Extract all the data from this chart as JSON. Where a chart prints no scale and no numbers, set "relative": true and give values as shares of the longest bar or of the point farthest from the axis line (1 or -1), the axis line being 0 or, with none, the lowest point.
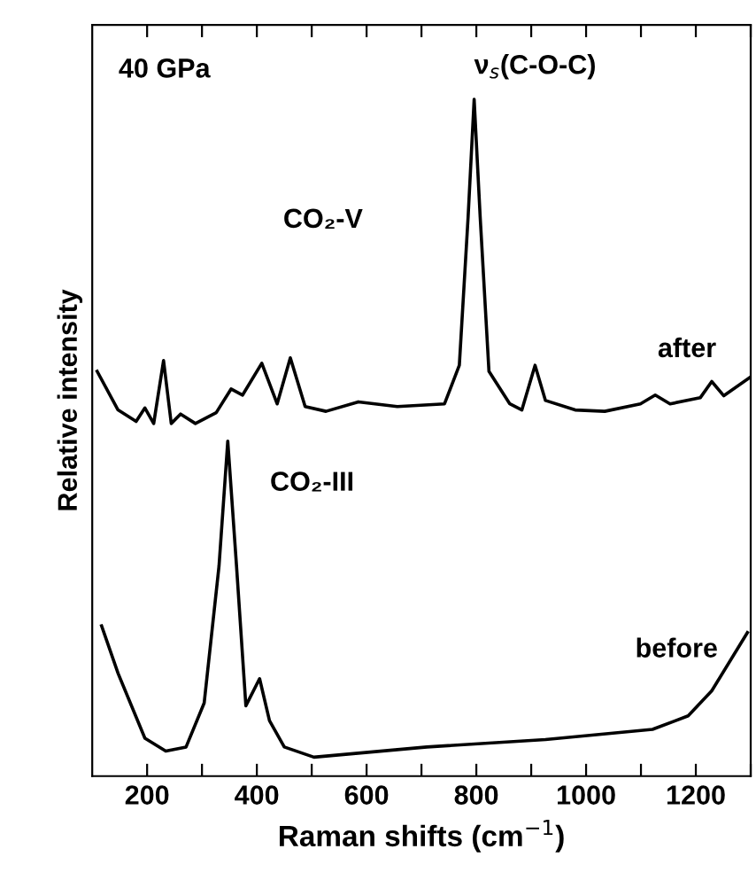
{
  "chart_data": {
    "type": "line",
    "relative": true,
    "xlabel": "Raman shifts (cm$^{−1}$)",
    "ylabel": "Relative intensity",
    "xlim": [
      100,
      1300
    ],
    "xticks": [
      200,
      400,
      600,
      800,
      1000,
      1200,
      {
        "value": 300,
        "label": null
      },
      {
        "value": 500,
        "label": null
      },
      {
        "value": 700,
        "label": null
      },
      {
        "value": 900,
        "label": null
      },
      {
        "value": 1100,
        "label": null
      },
      {
        "value": 1300,
        "label": null
      }
    ],
    "grid": false,
    "legend": false,
    "marker": "none",
    "line_style": "solid",
    "annotations": [
      "40 GPa",
      {
        "text": "ν$_{s}$(C-O-C)",
        "x": 796,
        "y": 1.0
      },
      "CO₂-V",
      "CO₂-III"
    ],
    "series": [
      {
        "name": "after",
        "color": "#000000",
        "x": [
          109,
          147,
          180,
          196,
          212,
          230,
          244,
          261,
          288,
          326,
          353,
          374,
          409,
          437,
          461,
          488,
          526,
          585,
          656,
          742,
          769,
          785,
          796,
          807,
          823,
          861,
          883,
          907,
          926,
          980,
          1034,
          1099,
          1126,
          1153,
          1208,
          1229,
          1251,
          1300
        ],
        "values": [
          0.598,
          0.541,
          0.524,
          0.544,
          0.521,
          0.614,
          0.521,
          0.535,
          0.521,
          0.537,
          0.572,
          0.563,
          0.61,
          0.55,
          0.618,
          0.546,
          0.539,
          0.553,
          0.546,
          0.55,
          0.607,
          0.826,
          1.0,
          0.826,
          0.598,
          0.55,
          0.541,
          0.607,
          0.555,
          0.541,
          0.539,
          0.55,
          0.563,
          0.55,
          0.559,
          0.583,
          0.562,
          0.59
        ]
      },
      {
        "name": "before",
        "color": "#000000",
        "x": [
          117,
          147,
          196,
          234,
          271,
          304,
          331,
          347,
          363,
          380,
          405,
          423,
          450,
          504,
          710,
          926,
          1121,
          1186,
          1229,
          1294
        ],
        "values": [
          0.222,
          0.152,
          0.056,
          0.037,
          0.043,
          0.108,
          0.31,
          0.495,
          0.31,
          0.104,
          0.144,
          0.082,
          0.043,
          0.028,
          0.043,
          0.054,
          0.069,
          0.089,
          0.126,
          0.212
        ]
      }
    ]
  }
}
